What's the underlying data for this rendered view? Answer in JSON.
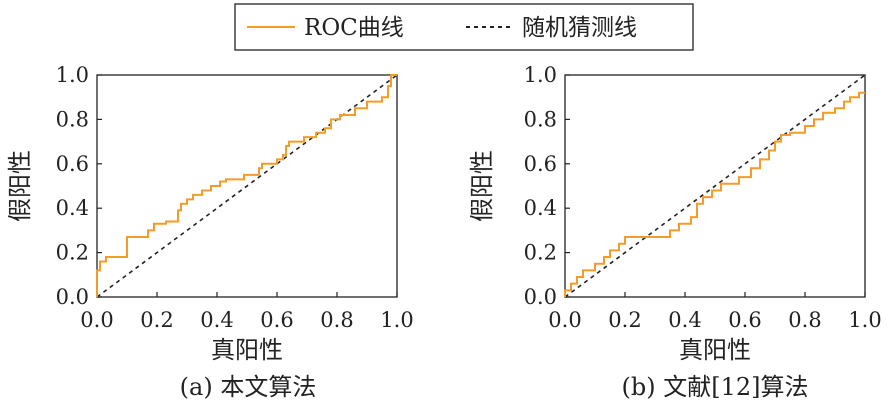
{
  "legend": {
    "entries": [
      {
        "label": "ROC曲线",
        "color": "#f39c2a",
        "style": "solid"
      },
      {
        "label": "随机猜测线",
        "color": "#222222",
        "style": "dashed"
      }
    ]
  },
  "chart_data": [
    {
      "type": "line",
      "caption": "(a) 本文算法",
      "xlabel": "真阳性",
      "ylabel": "假阳性",
      "xlim": [
        0.0,
        1.0
      ],
      "ylim": [
        0.0,
        1.0
      ],
      "xticks": [
        "0.0",
        "0.2",
        "0.4",
        "0.6",
        "0.8",
        "1.0"
      ],
      "yticks": [
        "0.0",
        "0.2",
        "0.4",
        "0.6",
        "0.8",
        "1.0"
      ],
      "grid": false,
      "series": [
        {
          "name": "ROC曲线",
          "color": "#f39c2a",
          "style": "step",
          "x": [
            0.0,
            0.0,
            0.01,
            0.01,
            0.03,
            0.03,
            0.1,
            0.1,
            0.17,
            0.17,
            0.19,
            0.19,
            0.23,
            0.23,
            0.27,
            0.27,
            0.28,
            0.28,
            0.3,
            0.3,
            0.32,
            0.32,
            0.35,
            0.35,
            0.38,
            0.38,
            0.41,
            0.41,
            0.43,
            0.43,
            0.49,
            0.49,
            0.54,
            0.54,
            0.55,
            0.55,
            0.6,
            0.6,
            0.62,
            0.62,
            0.63,
            0.63,
            0.64,
            0.64,
            0.69,
            0.69,
            0.73,
            0.73,
            0.76,
            0.76,
            0.78,
            0.78,
            0.81,
            0.81,
            0.86,
            0.86,
            0.9,
            0.9,
            0.95,
            0.95,
            0.97,
            0.97,
            0.98,
            0.98,
            1.0
          ],
          "y": [
            0.0,
            0.12,
            0.12,
            0.16,
            0.16,
            0.18,
            0.18,
            0.27,
            0.27,
            0.3,
            0.3,
            0.33,
            0.33,
            0.34,
            0.34,
            0.39,
            0.39,
            0.42,
            0.42,
            0.44,
            0.44,
            0.46,
            0.46,
            0.48,
            0.48,
            0.5,
            0.5,
            0.52,
            0.52,
            0.53,
            0.53,
            0.55,
            0.55,
            0.58,
            0.58,
            0.6,
            0.6,
            0.62,
            0.62,
            0.64,
            0.64,
            0.68,
            0.68,
            0.7,
            0.7,
            0.72,
            0.72,
            0.74,
            0.74,
            0.76,
            0.76,
            0.8,
            0.8,
            0.82,
            0.82,
            0.85,
            0.85,
            0.88,
            0.88,
            0.9,
            0.9,
            0.95,
            0.95,
            1.0,
            1.0
          ]
        },
        {
          "name": "随机猜测线",
          "color": "#222222",
          "style": "dashed",
          "x": [
            0.0,
            1.0
          ],
          "y": [
            0.0,
            1.0
          ]
        }
      ]
    },
    {
      "type": "line",
      "caption": "(b) 文献[12]算法",
      "xlabel": "真阳性",
      "ylabel": "假阳性",
      "xlim": [
        0.0,
        1.0
      ],
      "ylim": [
        0.0,
        1.0
      ],
      "xticks": [
        "0.0",
        "0.2",
        "0.4",
        "0.6",
        "0.8",
        "1.0"
      ],
      "yticks": [
        "0.0",
        "0.2",
        "0.4",
        "0.6",
        "0.8",
        "1.0"
      ],
      "grid": false,
      "series": [
        {
          "name": "ROC曲线",
          "color": "#f39c2a",
          "style": "step",
          "x": [
            0.0,
            0.0,
            0.02,
            0.02,
            0.04,
            0.04,
            0.06,
            0.06,
            0.1,
            0.1,
            0.13,
            0.13,
            0.15,
            0.15,
            0.18,
            0.18,
            0.2,
            0.2,
            0.35,
            0.35,
            0.38,
            0.38,
            0.42,
            0.42,
            0.44,
            0.44,
            0.46,
            0.46,
            0.49,
            0.49,
            0.52,
            0.52,
            0.58,
            0.58,
            0.62,
            0.62,
            0.65,
            0.65,
            0.68,
            0.68,
            0.7,
            0.7,
            0.72,
            0.72,
            0.75,
            0.75,
            0.8,
            0.8,
            0.83,
            0.83,
            0.86,
            0.86,
            0.9,
            0.9,
            0.93,
            0.93,
            0.95,
            0.95,
            0.98,
            0.98,
            1.0
          ],
          "y": [
            0.0,
            0.03,
            0.03,
            0.06,
            0.06,
            0.09,
            0.09,
            0.12,
            0.12,
            0.15,
            0.15,
            0.18,
            0.18,
            0.21,
            0.21,
            0.24,
            0.24,
            0.27,
            0.27,
            0.3,
            0.3,
            0.33,
            0.33,
            0.36,
            0.36,
            0.42,
            0.42,
            0.45,
            0.45,
            0.48,
            0.48,
            0.51,
            0.51,
            0.54,
            0.54,
            0.58,
            0.58,
            0.62,
            0.62,
            0.66,
            0.66,
            0.7,
            0.7,
            0.73,
            0.73,
            0.74,
            0.74,
            0.77,
            0.77,
            0.8,
            0.8,
            0.83,
            0.83,
            0.85,
            0.85,
            0.88,
            0.88,
            0.9,
            0.9,
            0.92,
            0.92
          ]
        },
        {
          "name": "随机猜测线",
          "color": "#222222",
          "style": "dashed",
          "x": [
            0.0,
            1.0
          ],
          "y": [
            0.0,
            1.0
          ]
        }
      ]
    }
  ]
}
